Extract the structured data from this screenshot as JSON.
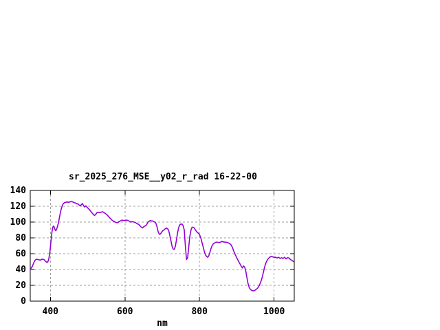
{
  "window": {
    "background": "#ffffff"
  },
  "chart_data": {
    "type": "line",
    "title": "sr_2025_276_MSE__y02_r_rad 16-22-00",
    "xlabel": "nm",
    "ylabel": "",
    "xlim": [
      346,
      1054
    ],
    "ylim": [
      0,
      140
    ],
    "x_ticks": [
      400,
      600,
      800,
      1000
    ],
    "y_ticks": [
      0,
      20,
      40,
      60,
      80,
      100,
      120,
      140
    ],
    "grid": true,
    "legend_position": "none",
    "colors": {
      "line": "#9400d3",
      "grid": "#9e9e9e",
      "frame": "#000000",
      "text": "#000000",
      "background": "#ffffff"
    },
    "series": [
      {
        "name": "sr_2025_276_MSE__y02_r_rad 16-22-00",
        "x": [
          346,
          349,
          352,
          355,
          358,
          361,
          364,
          368,
          371,
          374,
          377,
          380,
          383,
          386,
          389,
          392,
          394,
          396,
          398,
          400,
          402,
          404,
          406,
          408,
          410,
          412,
          414,
          416,
          418,
          420,
          422,
          424,
          426,
          428,
          430,
          432,
          435,
          438,
          441,
          444,
          448,
          452,
          456,
          460,
          464,
          468,
          471,
          474,
          477,
          480,
          483,
          486,
          489,
          492,
          495,
          498,
          501,
          504,
          507,
          510,
          513,
          516,
          519,
          522,
          525,
          528,
          532,
          536,
          540,
          544,
          548,
          552,
          556,
          560,
          564,
          568,
          572,
          576,
          580,
          584,
          588,
          592,
          596,
          600,
          604,
          608,
          612,
          616,
          620,
          624,
          628,
          632,
          637,
          641,
          644,
          647,
          650,
          653,
          656,
          659,
          662,
          665,
          668,
          671,
          674,
          677,
          680,
          683,
          686,
          689,
          692,
          695,
          698,
          702,
          705,
          708,
          711,
          714,
          717,
          720,
          723,
          726,
          729,
          732,
          735,
          738,
          741,
          744,
          747,
          750,
          753,
          756,
          759,
          762,
          765,
          768,
          771,
          774,
          777,
          780,
          783,
          786,
          789,
          792,
          795,
          798,
          801,
          804,
          807,
          810,
          813,
          816,
          819,
          822,
          825,
          828,
          831,
          834,
          837,
          840,
          844,
          848,
          852,
          856,
          860,
          864,
          868,
          872,
          876,
          880,
          884,
          888,
          892,
          896,
          900,
          904,
          908,
          912,
          915,
          918,
          921,
          924,
          927,
          930,
          933,
          936,
          940,
          944,
          948,
          952,
          956,
          960,
          964,
          968,
          971,
          974,
          977,
          980,
          984,
          988,
          992,
          996,
          1000,
          1004,
          1008,
          1012,
          1016,
          1020,
          1024,
          1028,
          1032,
          1036,
          1040,
          1044,
          1048,
          1052
        ],
        "y": [
          40,
          42,
          44.5,
          48,
          51,
          52.5,
          53,
          52.5,
          52,
          52,
          53,
          53,
          52.5,
          51,
          49.5,
          49,
          50.5,
          54,
          60,
          68,
          78,
          87,
          92.5,
          95,
          94,
          91,
          89,
          90,
          93,
          96,
          100,
          105,
          110,
          114.5,
          118,
          121,
          123.5,
          124.5,
          125,
          125.5,
          125,
          125.5,
          126,
          125.5,
          124.5,
          124,
          123,
          123,
          121.5,
          120.5,
          122,
          123.5,
          120.5,
          119,
          120.5,
          119,
          117.5,
          116,
          114.5,
          112.5,
          111,
          109,
          108.5,
          110,
          112,
          112.5,
          112,
          112.5,
          113,
          112,
          110.5,
          109,
          107,
          105,
          103,
          101.5,
          100.5,
          99.5,
          99,
          100.5,
          101.5,
          102.5,
          102,
          102,
          102.5,
          102,
          101,
          100,
          100.5,
          100,
          99.5,
          98,
          97,
          95,
          93.5,
          92.5,
          94,
          95,
          95.5,
          97.5,
          100,
          101,
          102,
          101.5,
          101.5,
          100.5,
          100,
          98.5,
          94,
          88,
          84.5,
          85,
          87,
          89.5,
          90,
          91.5,
          92.5,
          91.5,
          90,
          84,
          77,
          70,
          66,
          65.5,
          69,
          77,
          86,
          93,
          96.5,
          97.5,
          97.5,
          95.5,
          90,
          70,
          52.5,
          55,
          68,
          82,
          90,
          93.5,
          93.5,
          92.5,
          90,
          88,
          86.5,
          85.5,
          83,
          79,
          73.5,
          68,
          62.5,
          58.5,
          56.5,
          55.5,
          57.5,
          62,
          67,
          70.5,
          72.5,
          73.5,
          74.5,
          74.5,
          74,
          74.5,
          75.5,
          75,
          74.5,
          74.5,
          74,
          73,
          71.5,
          68,
          63,
          58.5,
          54.5,
          51,
          47.5,
          44,
          42,
          44.5,
          43,
          38,
          30,
          22.5,
          17.5,
          15,
          13.5,
          13,
          13.5,
          15,
          16.5,
          19.5,
          24,
          30,
          36,
          42,
          47,
          50.5,
          53.5,
          55.5,
          56.5,
          56,
          55.5,
          55.5,
          54.5,
          55.5,
          54,
          55,
          54,
          55.5,
          53.5,
          55,
          54.5,
          52.5,
          51.5,
          50
        ]
      }
    ]
  }
}
